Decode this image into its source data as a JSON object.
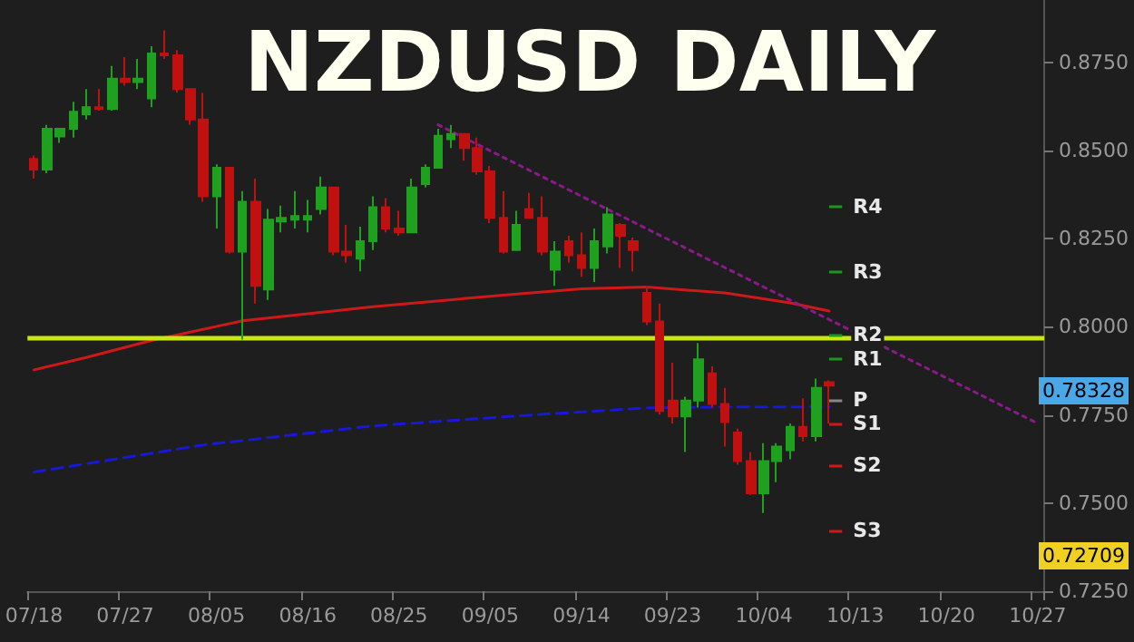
{
  "chart_data": {
    "type": "candlestick",
    "title": "NZDUSD DAILY",
    "categories": [
      "07/18",
      null,
      null,
      null,
      null,
      null,
      null,
      "07/27",
      null,
      null,
      null,
      null,
      null,
      null,
      "08/05",
      null,
      null,
      null,
      null,
      null,
      null,
      "08/16",
      null,
      null,
      null,
      null,
      null,
      null,
      "08/25",
      null,
      null,
      null,
      null,
      null,
      null,
      "09/05",
      null,
      null,
      null,
      null,
      null,
      null,
      "09/14",
      null,
      null,
      null,
      null,
      null,
      null,
      "09/23",
      null,
      null,
      null,
      null,
      null,
      null,
      "10/04",
      null,
      null,
      null,
      null,
      null,
      null,
      "10/13",
      null,
      null,
      null,
      null,
      null,
      null,
      "10/20",
      null,
      null,
      null,
      null,
      null,
      null,
      "10/27"
    ],
    "ohlc": [
      [
        0.8476,
        0.8486,
        0.842,
        0.8446
      ],
      [
        0.8446,
        0.8573,
        0.8436,
        0.8562
      ],
      [
        0.854,
        0.8562,
        0.8522,
        0.8562
      ],
      [
        0.8562,
        0.8638,
        0.8537,
        0.861
      ],
      [
        0.8603,
        0.8674,
        0.8588,
        0.8623
      ],
      [
        0.8623,
        0.8674,
        0.8613,
        0.8618
      ],
      [
        0.8618,
        0.874,
        0.8613,
        0.8704
      ],
      [
        0.8704,
        0.8765,
        0.8684,
        0.8694
      ],
      [
        0.8694,
        0.876,
        0.8674,
        0.8704
      ],
      [
        0.8648,
        0.8796,
        0.8623,
        0.8775
      ],
      [
        0.8775,
        0.8841,
        0.876,
        0.877
      ],
      [
        0.877,
        0.8785,
        0.8664,
        0.8674
      ],
      [
        0.8674,
        0.8674,
        0.8573,
        0.8588
      ],
      [
        0.8588,
        0.8664,
        0.8355,
        0.837
      ],
      [
        0.837,
        0.8461,
        0.8279,
        0.8451
      ],
      [
        0.8451,
        0.8451,
        0.8208,
        0.8213
      ],
      [
        0.8213,
        0.8385,
        0.7964,
        0.8355
      ],
      [
        0.8355,
        0.842,
        0.8066,
        0.8116
      ],
      [
        0.8106,
        0.8334,
        0.8076,
        0.8304
      ],
      [
        0.8299,
        0.8344,
        0.8268,
        0.8309
      ],
      [
        0.8304,
        0.8385,
        0.8279,
        0.8314
      ],
      [
        0.8304,
        0.836,
        0.8268,
        0.8314
      ],
      [
        0.8334,
        0.8426,
        0.8319,
        0.8395
      ],
      [
        0.8395,
        0.8395,
        0.8203,
        0.8213
      ],
      [
        0.8213,
        0.8289,
        0.8182,
        0.8203
      ],
      [
        0.8193,
        0.8284,
        0.8157,
        0.8243
      ],
      [
        0.8243,
        0.837,
        0.8218,
        0.8339
      ],
      [
        0.8339,
        0.8365,
        0.8268,
        0.8279
      ],
      [
        0.8279,
        0.8329,
        0.8258,
        0.8268
      ],
      [
        0.8268,
        0.842,
        0.8268,
        0.8395
      ],
      [
        0.8405,
        0.8461,
        0.8395,
        0.8451
      ],
      [
        0.8451,
        0.8562,
        0.8451,
        0.8542
      ],
      [
        0.8532,
        0.8573,
        0.8507,
        0.8547
      ],
      [
        0.8547,
        0.8547,
        0.8471,
        0.8507
      ],
      [
        0.8507,
        0.8537,
        0.8431,
        0.8441
      ],
      [
        0.8441,
        0.8456,
        0.8294,
        0.8309
      ],
      [
        0.8309,
        0.8385,
        0.8208,
        0.8213
      ],
      [
        0.8218,
        0.8329,
        0.8218,
        0.8289
      ],
      [
        0.8334,
        0.838,
        0.8309,
        0.8309
      ],
      [
        0.8309,
        0.837,
        0.8203,
        0.8213
      ],
      [
        0.8162,
        0.8243,
        0.8116,
        0.8213
      ],
      [
        0.8243,
        0.8258,
        0.8182,
        0.8203
      ],
      [
        0.8203,
        0.8268,
        0.8142,
        0.8167
      ],
      [
        0.8167,
        0.8279,
        0.8127,
        0.8243
      ],
      [
        0.8228,
        0.8339,
        0.8208,
        0.8319
      ],
      [
        0.8289,
        0.8294,
        0.8167,
        0.8258
      ],
      [
        0.8243,
        0.8253,
        0.8157,
        0.8218
      ],
      [
        0.8096,
        0.8116,
        0.8005,
        0.8015
      ],
      [
        0.8015,
        0.8066,
        0.7751,
        0.7761
      ],
      [
        0.7791,
        0.7898,
        0.7726,
        0.7746
      ],
      [
        0.7746,
        0.7802,
        0.7645,
        0.7791
      ],
      [
        0.7791,
        0.7954,
        0.7771,
        0.7908
      ],
      [
        0.7868,
        0.7888,
        0.7771,
        0.7781
      ],
      [
        0.7781,
        0.7827,
        0.766,
        0.773
      ],
      [
        0.77,
        0.7711,
        0.7609,
        0.7619
      ],
      [
        0.7619,
        0.7645,
        0.7523,
        0.7528
      ],
      [
        0.7528,
        0.767,
        0.7472,
        0.7619
      ],
      [
        0.7619,
        0.767,
        0.7559,
        0.766
      ],
      [
        0.765,
        0.7726,
        0.7624,
        0.7716
      ],
      [
        0.7716,
        0.7797,
        0.7675,
        0.769
      ],
      [
        0.769,
        0.7853,
        0.7675,
        0.7827
      ],
      [
        0.7843,
        0.7848,
        0.7726,
        0.7833
      ],
      null,
      null,
      null,
      null,
      null,
      null,
      null,
      null,
      null,
      null,
      null,
      null,
      null,
      null,
      null,
      null
    ],
    "series": [
      {
        "type": "line",
        "color": "#d01818",
        "line_style": "solid",
        "values": [
          0.7878,
          null,
          null,
          null,
          0.7913,
          null,
          null,
          null,
          null,
          0.7961,
          null,
          null,
          null,
          null,
          null,
          null,
          0.8017,
          null,
          null,
          null,
          null,
          null,
          null,
          null,
          null,
          null,
          0.8057,
          null,
          null,
          null,
          null,
          null,
          null,
          null,
          null,
          null,
          0.809,
          null,
          null,
          null,
          null,
          null,
          0.8108,
          null,
          null,
          null,
          null,
          0.8113,
          null,
          null,
          null,
          null,
          null,
          0.8096,
          null,
          null,
          null,
          null,
          0.8068,
          null,
          null,
          0.8045,
          null,
          null,
          null,
          null,
          null,
          null,
          null,
          null,
          null,
          null,
          null,
          null,
          null,
          null,
          null,
          null
        ]
      },
      {
        "type": "line",
        "color": "#1818d8",
        "line_style": "dashed",
        "values": [
          0.7588,
          null,
          null,
          null,
          null,
          null,
          null,
          null,
          null,
          null,
          null,
          null,
          null,
          0.7665,
          null,
          null,
          null,
          null,
          null,
          null,
          null,
          null,
          null,
          null,
          null,
          null,
          0.7719,
          null,
          null,
          null,
          null,
          null,
          null,
          null,
          null,
          null,
          null,
          null,
          null,
          0.7752,
          null,
          null,
          null,
          null,
          null,
          null,
          null,
          0.777,
          null,
          null,
          null,
          null,
          null,
          null,
          0.7773,
          null,
          null,
          null,
          null,
          null,
          null,
          0.7773,
          null,
          null,
          null,
          null,
          null,
          null,
          null,
          null,
          null,
          null,
          null,
          null,
          null,
          null,
          null,
          null
        ]
      },
      {
        "type": "line",
        "color": "#8a1a8a",
        "line_style": "dotted",
        "values": [
          null,
          null,
          null,
          null,
          null,
          null,
          null,
          null,
          null,
          null,
          null,
          null,
          null,
          null,
          null,
          null,
          null,
          null,
          null,
          null,
          null,
          null,
          null,
          null,
          null,
          null,
          null,
          null,
          null,
          null,
          null,
          0.8573,
          null,
          null,
          null,
          null,
          null,
          null,
          null,
          null,
          null,
          null,
          null,
          null,
          null,
          null,
          null,
          null,
          null,
          null,
          null,
          null,
          null,
          null,
          null,
          null,
          null,
          null,
          null,
          null,
          null,
          null,
          null,
          null,
          null,
          null,
          null,
          null,
          null,
          null,
          null,
          null,
          null,
          null,
          null,
          null,
          null,
          0.7726
        ]
      }
    ],
    "ref_lines": [
      {
        "axis": "y",
        "value": 0.7968,
        "color": "#c8e810",
        "label": null
      },
      {
        "axis": "y",
        "value": 0.8341,
        "color": "#1a9a1a",
        "label": "R4"
      },
      {
        "axis": "y",
        "value": 0.8155,
        "color": "#1a9a1a",
        "label": "R3"
      },
      {
        "axis": "y",
        "value": 0.7978,
        "color": "#1a9a1a",
        "label": "R2"
      },
      {
        "axis": "y",
        "value": 0.7908,
        "color": "#1a9a1a",
        "label": "R1"
      },
      {
        "axis": "y",
        "value": 0.7792,
        "color": "#888888",
        "label": "P"
      },
      {
        "axis": "y",
        "value": 0.7726,
        "color": "#d01818",
        "label": "S1"
      },
      {
        "axis": "y",
        "value": 0.7608,
        "color": "#d01818",
        "label": "S2"
      },
      {
        "axis": "y",
        "value": 0.7423,
        "color": "#d01818",
        "label": "S3"
      }
    ],
    "annotations": [
      "0.78328",
      "0.72709"
    ],
    "ylim": [
      0.725,
      0.8927
    ],
    "yticks": [
      {
        "value": 0.725,
        "label": "0.7250"
      },
      {
        "value": 0.75,
        "label": "0.7500"
      },
      {
        "value": 0.775,
        "label": "0.7750"
      },
      {
        "value": 0.8,
        "label": "0.8000"
      },
      {
        "value": 0.825,
        "label": "0.8250"
      },
      {
        "value": 0.85,
        "label": "0.8500"
      },
      {
        "value": 0.875,
        "label": "0.8750"
      }
    ],
    "grid": false
  }
}
